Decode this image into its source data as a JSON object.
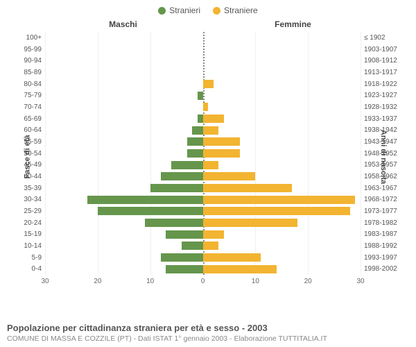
{
  "legend": {
    "male": {
      "label": "Stranieri",
      "color": "#65964c"
    },
    "female": {
      "label": "Straniere",
      "color": "#f2b431"
    }
  },
  "headers": {
    "male": "Maschi",
    "female": "Femmine"
  },
  "axis_titles": {
    "left": "Fasce di età",
    "right": "Anni di nascita"
  },
  "chart": {
    "type": "population-pyramid",
    "xmax": 30,
    "xticks_left": [
      30,
      20,
      10,
      0
    ],
    "xticks_right": [
      0,
      10,
      20,
      30
    ],
    "male_color": "#65964c",
    "female_color": "#f2b431",
    "grid_color": "#f0f0f0",
    "rows": [
      {
        "age": "100+",
        "birth": "≤ 1902",
        "m": 0,
        "f": 0
      },
      {
        "age": "95-99",
        "birth": "1903-1907",
        "m": 0,
        "f": 0
      },
      {
        "age": "90-94",
        "birth": "1908-1912",
        "m": 0,
        "f": 0
      },
      {
        "age": "85-89",
        "birth": "1913-1917",
        "m": 0,
        "f": 0
      },
      {
        "age": "80-84",
        "birth": "1918-1922",
        "m": 0,
        "f": 2
      },
      {
        "age": "75-79",
        "birth": "1923-1927",
        "m": 1,
        "f": 0
      },
      {
        "age": "70-74",
        "birth": "1928-1932",
        "m": 0,
        "f": 1
      },
      {
        "age": "65-69",
        "birth": "1933-1937",
        "m": 1,
        "f": 4
      },
      {
        "age": "60-64",
        "birth": "1938-1942",
        "m": 2,
        "f": 3
      },
      {
        "age": "55-59",
        "birth": "1943-1947",
        "m": 3,
        "f": 7
      },
      {
        "age": "50-54",
        "birth": "1948-1952",
        "m": 3,
        "f": 7
      },
      {
        "age": "45-49",
        "birth": "1953-1957",
        "m": 6,
        "f": 3
      },
      {
        "age": "40-44",
        "birth": "1958-1962",
        "m": 8,
        "f": 10
      },
      {
        "age": "35-39",
        "birth": "1963-1967",
        "m": 10,
        "f": 17
      },
      {
        "age": "30-34",
        "birth": "1968-1972",
        "m": 22,
        "f": 29
      },
      {
        "age": "25-29",
        "birth": "1973-1977",
        "m": 20,
        "f": 28
      },
      {
        "age": "20-24",
        "birth": "1978-1982",
        "m": 11,
        "f": 18
      },
      {
        "age": "15-19",
        "birth": "1983-1987",
        "m": 7,
        "f": 4
      },
      {
        "age": "10-14",
        "birth": "1988-1992",
        "m": 4,
        "f": 3
      },
      {
        "age": "5-9",
        "birth": "1993-1997",
        "m": 8,
        "f": 11
      },
      {
        "age": "0-4",
        "birth": "1998-2002",
        "m": 7,
        "f": 14
      }
    ]
  },
  "footer": {
    "title": "Popolazione per cittadinanza straniera per età e sesso - 2003",
    "subtitle": "COMUNE DI MASSA E COZZILE (PT) - Dati ISTAT 1° gennaio 2003 - Elaborazione TUTTITALIA.IT"
  }
}
